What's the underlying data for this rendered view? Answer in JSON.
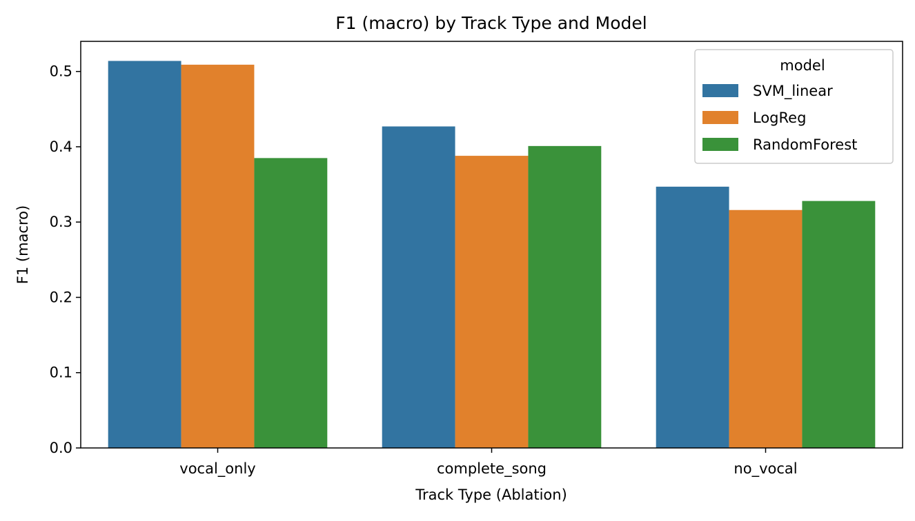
{
  "chart_data": {
    "type": "bar",
    "title": "F1 (macro) by Track Type and Model",
    "xlabel": "Track Type (Ablation)",
    "ylabel": "F1 (macro)",
    "categories": [
      "vocal_only",
      "complete_song",
      "no_vocal"
    ],
    "series": [
      {
        "name": "SVM_linear",
        "color": "#3274a1",
        "values": [
          0.514,
          0.427,
          0.347
        ]
      },
      {
        "name": "LogReg",
        "color": "#e1812c",
        "values": [
          0.509,
          0.388,
          0.316
        ]
      },
      {
        "name": "RandomForest",
        "color": "#3a923a",
        "values": [
          0.385,
          0.401,
          0.328
        ]
      }
    ],
    "ylim": [
      0,
      0.54
    ],
    "yticks": [
      0.0,
      0.1,
      0.2,
      0.3,
      0.4,
      0.5
    ],
    "ytick_labels": [
      "0.0",
      "0.1",
      "0.2",
      "0.3",
      "0.4",
      "0.5"
    ],
    "legend": {
      "title": "model",
      "position": "top-right"
    },
    "grid": false
  }
}
